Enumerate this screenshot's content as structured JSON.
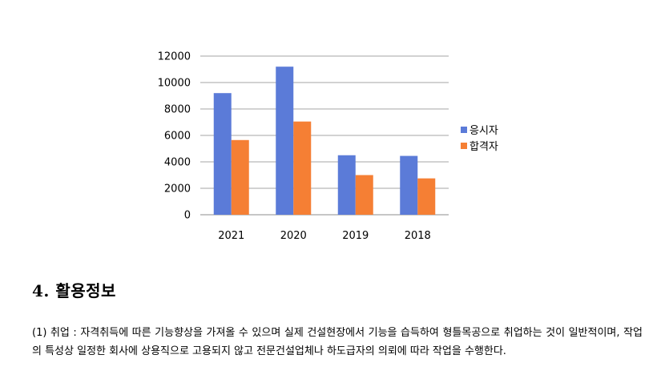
{
  "chart_data": {
    "type": "bar",
    "categories": [
      "2021",
      "2020",
      "2019",
      "2018"
    ],
    "series": [
      {
        "name": "응시자",
        "values": [
          9200,
          11200,
          4500,
          4450
        ],
        "color": "#5b7bd8"
      },
      {
        "name": "합격자",
        "values": [
          5650,
          7050,
          3000,
          2750
        ],
        "color": "#f57f34"
      }
    ],
    "ylim": [
      0,
      12000
    ],
    "yticks": [
      0,
      2000,
      4000,
      6000,
      8000,
      10000,
      12000
    ],
    "grid": true,
    "legend_position": "right"
  },
  "section": {
    "heading": "4. 활용정보",
    "paragraph": "(1) 취업 : 자격취득에 따른 기능향상을 가져올 수 있으며 실제 건설현장에서 기능을 습득하여 형틀목공으로 취업하는 것이 일반적이며, 작업의 특성상 일정한 회사에 상용직으로 고용되지 않고 전문건설업체나 하도급자의 의뢰에 따라 작업을 수행한다."
  }
}
